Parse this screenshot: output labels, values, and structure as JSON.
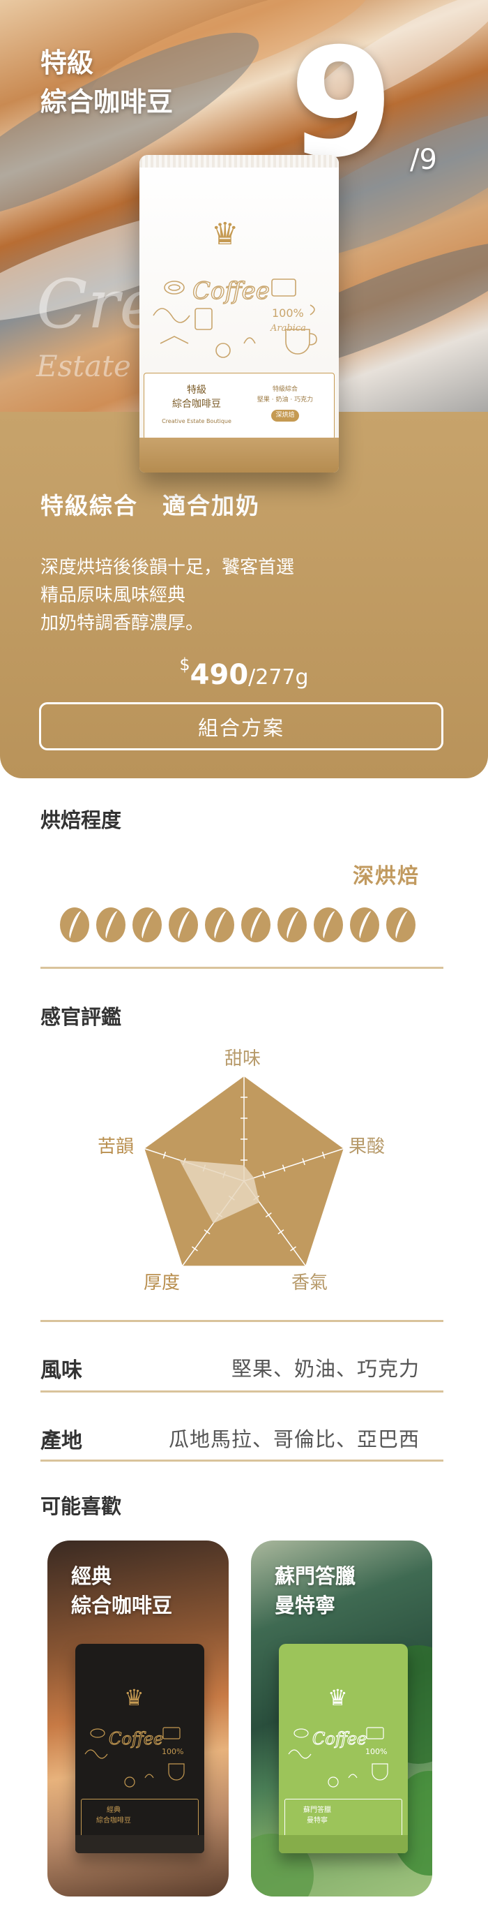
{
  "hero": {
    "title_line1": "特級",
    "title_line2": "綜合咖啡豆",
    "index": "9",
    "total": "/9",
    "ghost_word": "Cre",
    "ghost_sub": "Estate R"
  },
  "bag": {
    "name_line1": "特級",
    "name_line2": "綜合咖啡豆",
    "english": "Creative Estate Boutique",
    "right_line1": "特級綜合",
    "right_line2": "堅果 · 奶油 · 巧克力",
    "doodle_word": "Coffee",
    "doodle_badge": "100%",
    "doodle_arabica": "Arabica",
    "badge_text": "深烘焙"
  },
  "product": {
    "headline": "特級綜合　適合加奶",
    "desc_line1": "深度烘培後後韻十足，饕客首選",
    "desc_line2": "精品原味風味經典",
    "desc_line3": "加奶特調香醇濃厚。",
    "currency": "$",
    "price": "490",
    "unit": "/277g",
    "combo_button": "組合方案"
  },
  "roast": {
    "heading": "烘焙程度",
    "level_label": "深烘焙",
    "level": 10,
    "max": 10
  },
  "sensory": {
    "heading": "感官評鑑",
    "axes": [
      "甜味",
      "果酸",
      "香氣",
      "厚度",
      "苦韻"
    ],
    "values": [
      0.15,
      0.1,
      0.25,
      0.5,
      0.65
    ],
    "max": 1,
    "colors": {
      "outer": "#c19a5f",
      "inner": "#e8d7bd"
    }
  },
  "details": {
    "flavor_label": "風味",
    "flavor_value": "堅果、奶油、巧克力",
    "origin_label": "產地",
    "origin_value": "瓜地馬拉、哥倫比、亞巴西"
  },
  "recommend": {
    "heading": "可能喜歡",
    "items": [
      {
        "title_line1": "經典",
        "title_line2": "綜合咖啡豆",
        "bag_name1": "經典",
        "bag_name2": "綜合咖啡豆"
      },
      {
        "title_line1": "蘇門答臘",
        "title_line2": "曼特寧",
        "bag_name1": "蘇門答臘",
        "bag_name2": "曼特寧"
      }
    ]
  },
  "colors": {
    "gold": "#c19a5f",
    "gold_dark": "#b9935a",
    "text": "#333333"
  }
}
